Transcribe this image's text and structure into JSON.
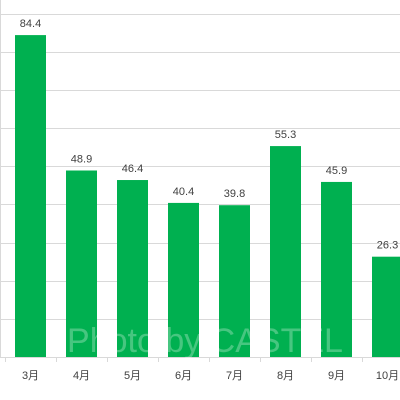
{
  "chart_data": {
    "type": "bar",
    "categories": [
      "3月",
      "4月",
      "5月",
      "6月",
      "7月",
      "8月",
      "9月",
      "10月"
    ],
    "values": [
      84.4,
      48.9,
      46.4,
      40.4,
      39.8,
      55.3,
      45.9,
      26.3
    ],
    "data_labels": [
      "84.4",
      "48.9",
      "46.4",
      "40.4",
      "39.8",
      "55.3",
      "45.9",
      "26.3"
    ],
    "ylim": [
      0,
      90
    ],
    "grid": true,
    "bar_color": "#00b050",
    "grid_color": "#d9d9d9",
    "label_color": "#404040",
    "watermark": "Photo by CASTEL"
  }
}
